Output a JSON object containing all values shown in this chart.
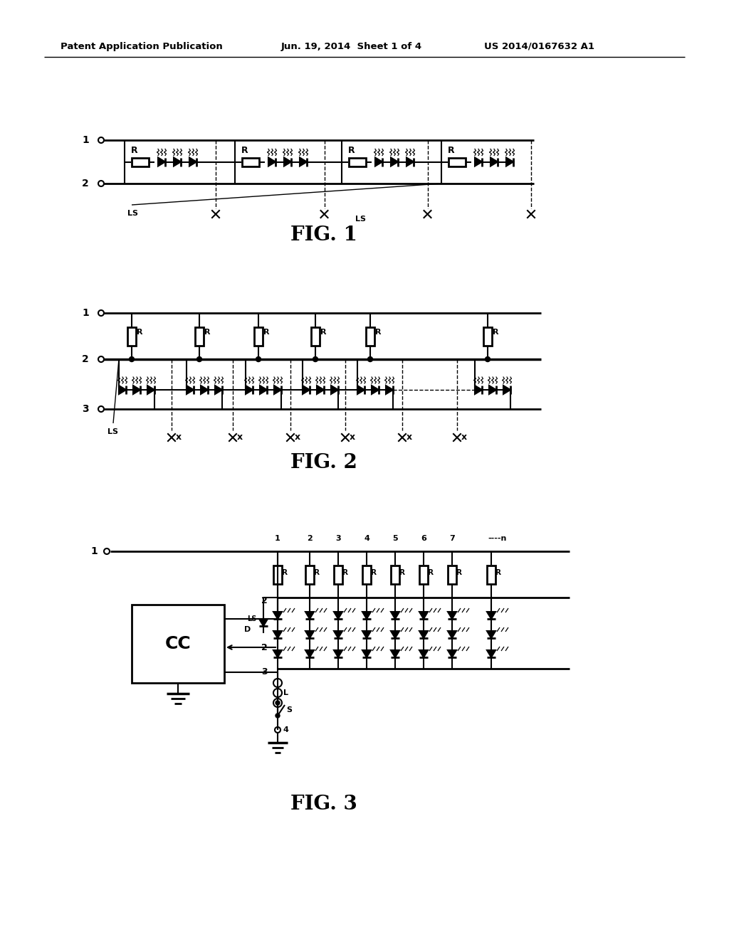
{
  "header_left": "Patent Application Publication",
  "header_mid": "Jun. 19, 2014  Sheet 1 of 4",
  "header_right": "US 2014/0167632 A1",
  "fig1_label": "FIG. 1",
  "fig2_label": "FIG. 2",
  "fig3_label": "FIG. 3",
  "bg_color": "#ffffff",
  "line_color": "#000000"
}
